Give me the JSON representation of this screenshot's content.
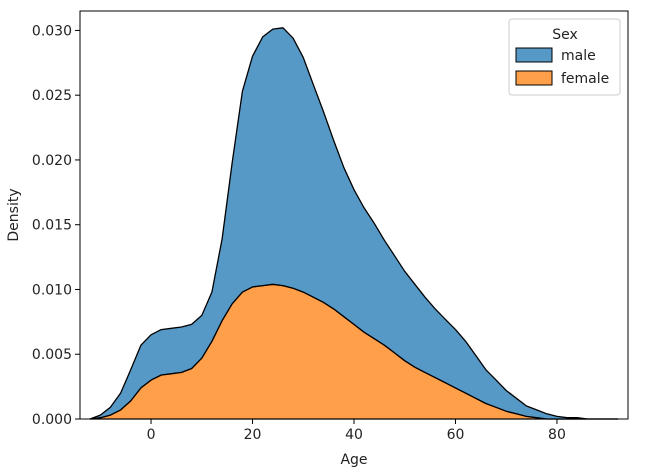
{
  "chart_data": {
    "type": "area",
    "stacked": true,
    "xlabel": "Age",
    "ylabel": "Density",
    "xlim": [
      -14,
      94
    ],
    "ylim": [
      0,
      0.0315
    ],
    "xticks": [
      0,
      20,
      40,
      60,
      80
    ],
    "xtick_labels": [
      "0",
      "20",
      "40",
      "60",
      "80"
    ],
    "yticks": [
      0,
      0.005,
      0.01,
      0.015,
      0.02,
      0.025,
      0.03
    ],
    "ytick_labels": [
      "0.000",
      "0.005",
      "0.010",
      "0.015",
      "0.020",
      "0.025",
      "0.030"
    ],
    "legend": {
      "title": "Sex",
      "placement": "top-right"
    },
    "x": [
      -12,
      -10,
      -8,
      -6,
      -4,
      -2,
      0,
      2,
      4,
      6,
      8,
      10,
      12,
      14,
      16,
      18,
      20,
      22,
      24,
      26,
      28,
      30,
      32,
      34,
      36,
      38,
      40,
      42,
      44,
      46,
      48,
      50,
      52,
      54,
      56,
      58,
      60,
      62,
      64,
      66,
      68,
      70,
      72,
      74,
      76,
      78,
      80,
      82,
      84,
      86,
      88,
      90,
      92
    ],
    "series": [
      {
        "name": "female",
        "color": "#ff9f4a",
        "values": [
          0,
          0.0001,
          0.0003,
          0.0007,
          0.0014,
          0.0024,
          0.003,
          0.0034,
          0.0035,
          0.0036,
          0.0039,
          0.0047,
          0.006,
          0.0076,
          0.0089,
          0.0098,
          0.0102,
          0.0103,
          0.0104,
          0.0103,
          0.0101,
          0.0098,
          0.0094,
          0.009,
          0.0085,
          0.0079,
          0.0073,
          0.0067,
          0.0062,
          0.0057,
          0.0051,
          0.0045,
          0.004,
          0.0036,
          0.0032,
          0.0028,
          0.0024,
          0.002,
          0.0016,
          0.0012,
          0.0009,
          0.0006,
          0.0004,
          0.0002,
          0.0001,
          0,
          0,
          0,
          0,
          0,
          0,
          0,
          0
        ]
      },
      {
        "name": "male",
        "color": "#5799c6",
        "values": [
          0,
          0.0002,
          0.0006,
          0.0013,
          0.0024,
          0.0033,
          0.0035,
          0.0035,
          0.0035,
          0.0035,
          0.0034,
          0.0033,
          0.0038,
          0.0063,
          0.0109,
          0.0155,
          0.0178,
          0.0192,
          0.0197,
          0.0199,
          0.0193,
          0.0181,
          0.0164,
          0.0147,
          0.013,
          0.0115,
          0.0104,
          0.0096,
          0.0089,
          0.0081,
          0.0075,
          0.0069,
          0.0064,
          0.0058,
          0.0053,
          0.0049,
          0.0045,
          0.004,
          0.0033,
          0.0026,
          0.0021,
          0.0016,
          0.0012,
          0.0008,
          0.0006,
          0.0004,
          0.0002,
          0.0001,
          0.0001,
          0,
          0,
          0,
          0
        ]
      }
    ]
  }
}
